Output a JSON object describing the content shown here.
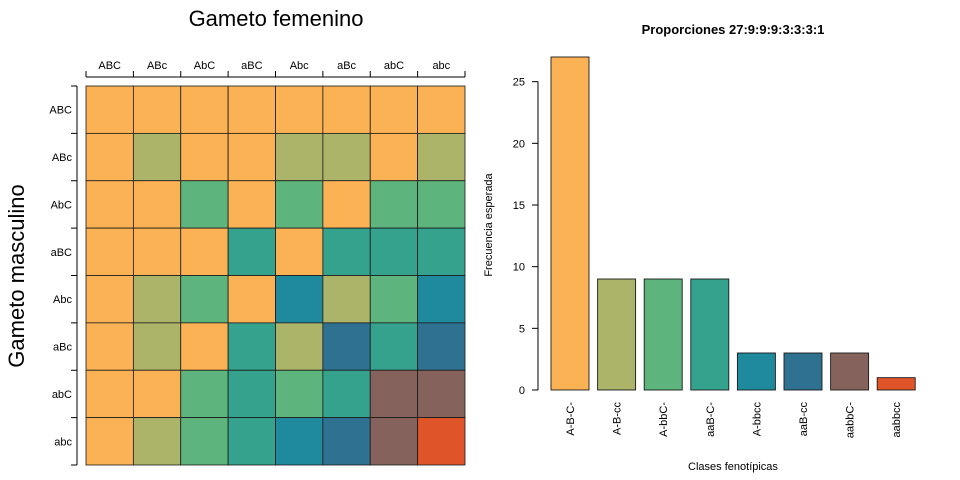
{
  "punnett": {
    "title": "Gameto femenino",
    "ylabel": "Gameto masculino",
    "col_labels": [
      "ABC",
      "ABc",
      "AbC",
      "aBC",
      "Abc",
      "aBc",
      "abC",
      "abc"
    ],
    "row_labels": [
      "ABC",
      "ABc",
      "AbC",
      "aBC",
      "Abc",
      "aBc",
      "abC",
      "abc"
    ],
    "colors": [
      "#FBB254",
      "#ACB46A",
      "#5DB47C",
      "#34A28C",
      "#1F8A9D",
      "#2E7190",
      "#85635C",
      "#DF5429"
    ],
    "grid": [
      [
        0,
        0,
        0,
        0,
        0,
        0,
        0,
        0
      ],
      [
        0,
        1,
        0,
        0,
        1,
        1,
        0,
        1
      ],
      [
        0,
        0,
        2,
        0,
        2,
        0,
        2,
        2
      ],
      [
        0,
        0,
        0,
        3,
        0,
        3,
        3,
        3
      ],
      [
        0,
        1,
        2,
        0,
        4,
        1,
        2,
        4
      ],
      [
        0,
        1,
        0,
        3,
        1,
        5,
        3,
        5
      ],
      [
        0,
        0,
        2,
        3,
        2,
        3,
        6,
        6
      ],
      [
        0,
        1,
        2,
        3,
        4,
        5,
        6,
        7
      ]
    ]
  },
  "chart_data": {
    "type": "bar",
    "title": "Proporciones 27:9:9:9:3:3:3:1",
    "xlabel": "Clases fenotípicas",
    "ylabel": "Frecuencia esperada",
    "categories": [
      "A-B-C-",
      "A-B-cc",
      "A-bbC-",
      "aaB-C-",
      "A-bbcc",
      "aaB-cc",
      "aabbC-",
      "aabbcc"
    ],
    "values": [
      27,
      9,
      9,
      9,
      3,
      3,
      3,
      1
    ],
    "colors": [
      "#FBB254",
      "#ACB46A",
      "#5DB47C",
      "#34A28C",
      "#1F8A9D",
      "#2E7190",
      "#85635C",
      "#DF5429"
    ],
    "yticks": [
      0,
      5,
      10,
      15,
      20,
      25
    ],
    "ylim": [
      0,
      27
    ]
  }
}
